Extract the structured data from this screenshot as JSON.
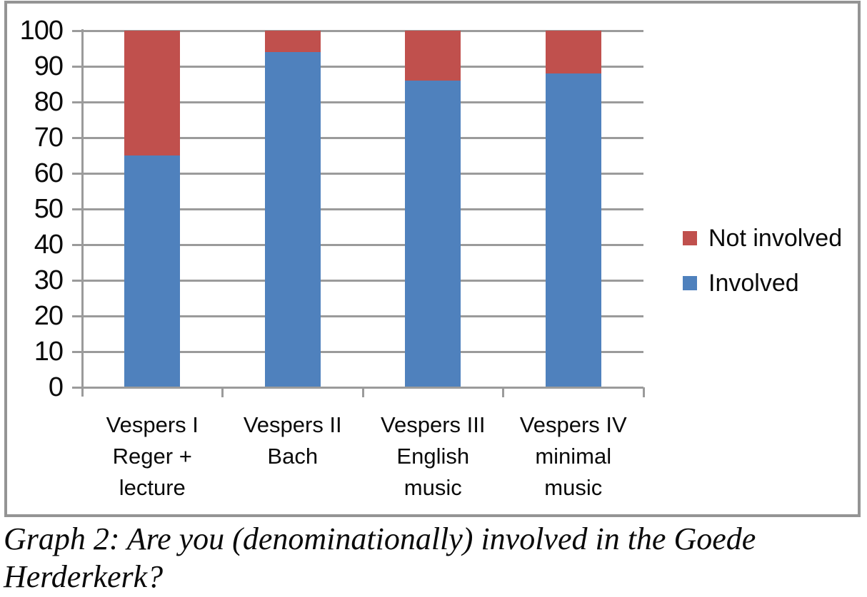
{
  "chart_data": {
    "type": "bar",
    "stacked": true,
    "orientation": "vertical",
    "categories": [
      [
        "Vespers I",
        "Reger +",
        "lecture"
      ],
      [
        "Vespers II",
        "Bach"
      ],
      [
        "Vespers III",
        "English",
        "music"
      ],
      [
        "Vespers IV",
        "minimal",
        "music"
      ]
    ],
    "series": [
      {
        "name": "Involved",
        "color": "#4F81BD",
        "values": [
          65,
          94,
          86,
          88
        ]
      },
      {
        "name": "Not involved",
        "color": "#C0504D",
        "values": [
          35,
          6,
          14,
          12
        ]
      }
    ],
    "y_axis": {
      "min": 0,
      "max": 100,
      "tick_step": 10,
      "tick_labels": [
        "0",
        "10",
        "20",
        "30",
        "40",
        "50",
        "60",
        "70",
        "80",
        "90",
        "100"
      ]
    },
    "grid": true,
    "legend": {
      "position": "right",
      "order": [
        "Not involved",
        "Involved"
      ]
    },
    "colors": {
      "gridline": "#9b9b9b",
      "border": "#949494",
      "text": "#0a0a0a"
    }
  },
  "caption": {
    "line1": "Graph 2: Are you (denominationally) involved in the",
    "line2": "Goede Herderkerk?"
  }
}
